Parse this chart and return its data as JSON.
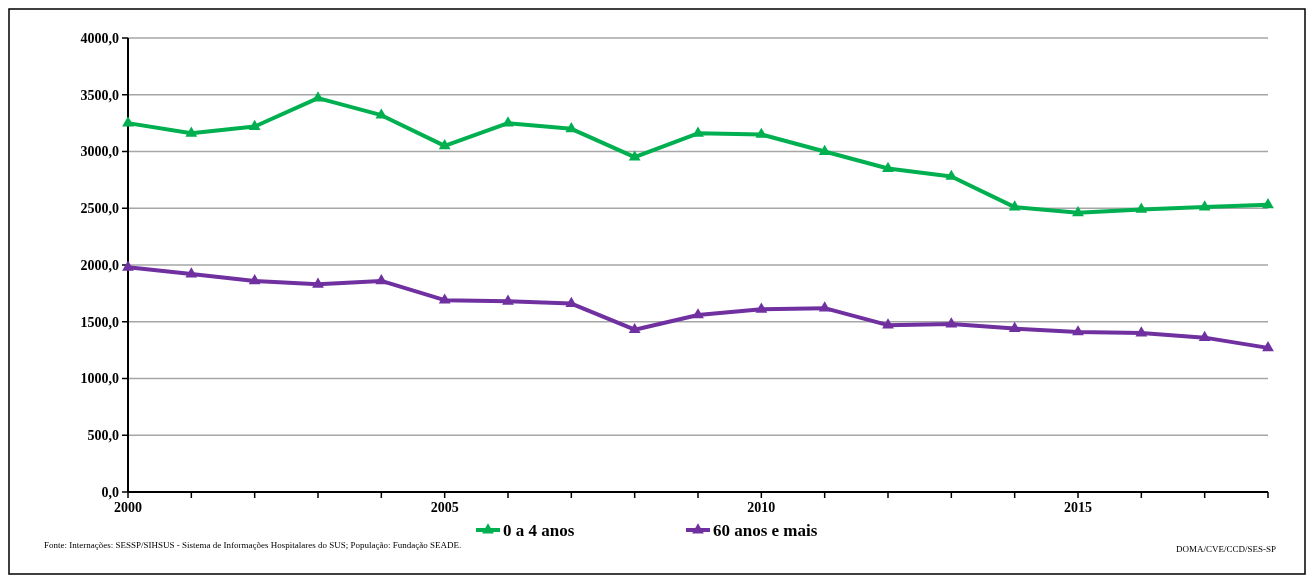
{
  "chart_data": {
    "type": "line",
    "x": [
      2000,
      2001,
      2002,
      2003,
      2004,
      2005,
      2006,
      2007,
      2008,
      2009,
      2010,
      2011,
      2012,
      2013,
      2014,
      2015,
      2016,
      2017,
      2018
    ],
    "series": [
      {
        "name": "0 a 4 anos",
        "color": "#00b050",
        "values": [
          3250,
          3160,
          3220,
          3470,
          3320,
          3050,
          3250,
          3200,
          2950,
          3160,
          3150,
          3000,
          2850,
          2780,
          2510,
          2460,
          2490,
          2510,
          2530
        ]
      },
      {
        "name": "60 anos e mais",
        "color": "#7030a0",
        "values": [
          1980,
          1920,
          1860,
          1830,
          1860,
          1690,
          1680,
          1660,
          1430,
          1560,
          1610,
          1620,
          1470,
          1480,
          1440,
          1410,
          1400,
          1360,
          1270
        ]
      }
    ],
    "xlim": [
      2000,
      2018
    ],
    "xticks": [
      2000,
      {
        "value": 2001,
        "label": null
      },
      {
        "value": 2002,
        "label": null
      },
      {
        "value": 2003,
        "label": null
      },
      {
        "value": 2004,
        "label": null
      },
      2005,
      {
        "value": 2006,
        "label": null
      },
      {
        "value": 2007,
        "label": null
      },
      {
        "value": 2008,
        "label": null
      },
      {
        "value": 2009,
        "label": null
      },
      2010,
      {
        "value": 2011,
        "label": null
      },
      {
        "value": 2012,
        "label": null
      },
      {
        "value": 2013,
        "label": null
      },
      {
        "value": 2014,
        "label": null
      },
      2015,
      {
        "value": 2016,
        "label": null
      },
      {
        "value": 2017,
        "label": null
      },
      {
        "value": 2018,
        "label": null
      }
    ],
    "ylim": [
      0,
      4000
    ],
    "yticks": [
      {
        "value": 0,
        "label": "0,0"
      },
      {
        "value": 500,
        "label": "500,0"
      },
      {
        "value": 1000,
        "label": "1000,0"
      },
      {
        "value": 1500,
        "label": "1500,0"
      },
      {
        "value": 2000,
        "label": "2000,0"
      },
      {
        "value": 2500,
        "label": "2500,0"
      },
      {
        "value": 3000,
        "label": "3000,0"
      },
      {
        "value": 3500,
        "label": "3500,0"
      },
      {
        "value": 4000,
        "label": "4000,0"
      }
    ],
    "grid": "y",
    "legend": "bottom",
    "marker": "triangle",
    "line_style": "solid",
    "annotations": [
      "Fonte: Internações: SESSP/SIHSUS  - Sistema de Informações Hospitalares do SUS; População: Fundação SEADE.",
      "DOMA/CVE/CCD/SES-SP"
    ]
  }
}
